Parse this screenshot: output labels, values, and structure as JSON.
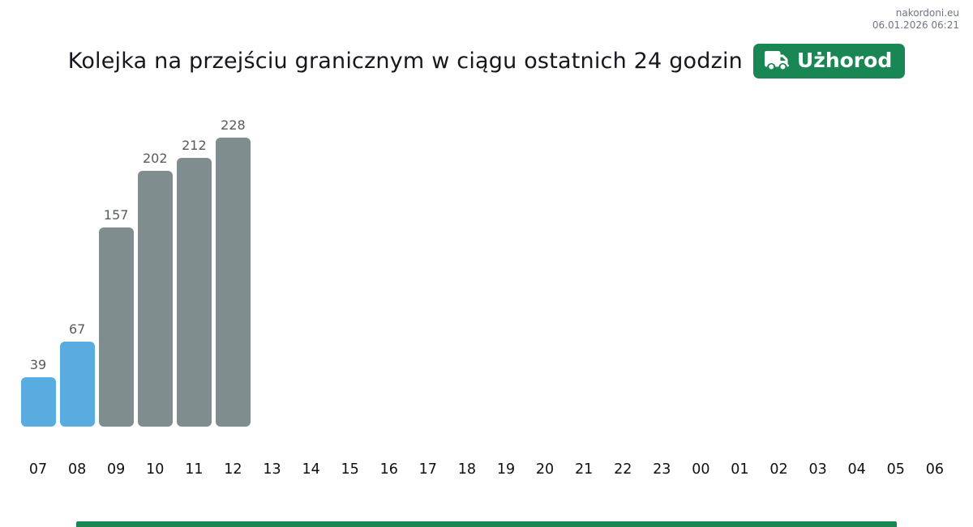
{
  "site": {
    "name": "nakordoni.eu",
    "timestamp": "06.01.2026 06:21"
  },
  "header": {
    "title": "Kolejka na przejściu granicznym w ciągu ostatnich 24 godzin",
    "badge": {
      "label": "Użhorod",
      "icon": "truck-icon",
      "color": "#198754"
    }
  },
  "chart_data": {
    "type": "bar",
    "title": "Kolejka na przejściu granicznym w ciągu ostatnich 24 godzin — Użhorod",
    "xlabel": "",
    "ylabel": "",
    "categories": [
      "07",
      "08",
      "09",
      "10",
      "11",
      "12",
      "13",
      "14",
      "15",
      "16",
      "17",
      "18",
      "19",
      "20",
      "21",
      "22",
      "23",
      "00",
      "01",
      "02",
      "03",
      "04",
      "05",
      "06"
    ],
    "values": [
      39,
      67,
      157,
      202,
      212,
      228,
      null,
      null,
      null,
      null,
      null,
      null,
      null,
      null,
      null,
      null,
      null,
      null,
      null,
      null,
      null,
      null,
      null,
      null
    ],
    "bar_colors": [
      "#59ace0",
      "#59ace0",
      "#7f8d8e",
      "#7f8d8e",
      "#7f8d8e",
      "#7f8d8e",
      null,
      null,
      null,
      null,
      null,
      null,
      null,
      null,
      null,
      null,
      null,
      null,
      null,
      null,
      null,
      null,
      null,
      null
    ],
    "value_labels_shown": true,
    "ylim": [
      0,
      240
    ],
    "grid": false,
    "legend": false
  },
  "colors": {
    "accent_green": "#198754",
    "bar_blue": "#59ace0",
    "bar_gray": "#7f8d8e",
    "footer_bar": "#198754",
    "value_label": "#565b5e",
    "axis_label": "#101010",
    "site_text": "#6b7687"
  }
}
